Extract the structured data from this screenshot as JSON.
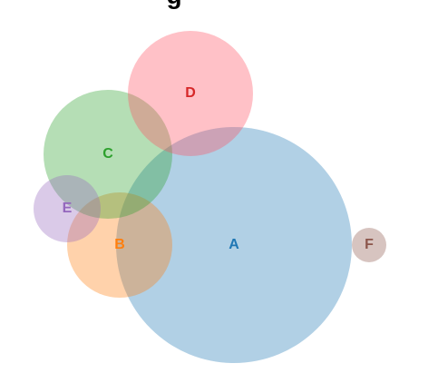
{
  "diagram": {
    "type": "venn",
    "title_fragment": "g",
    "sets": [
      {
        "id": "A",
        "label": "A",
        "fill": "#1f77b4",
        "text_color": "#1f77b4"
      },
      {
        "id": "B",
        "label": "B",
        "fill": "#ff7f0e",
        "text_color": "#ff7f0e"
      },
      {
        "id": "C",
        "label": "C",
        "fill": "#2ca02c",
        "text_color": "#2ca02c"
      },
      {
        "id": "D",
        "label": "D",
        "fill": "#ff4d5e",
        "text_color": "#d62728"
      },
      {
        "id": "E",
        "label": "E",
        "fill": "#9467bd",
        "text_color": "#9467bd"
      },
      {
        "id": "F",
        "label": "F",
        "fill": "#8c564b",
        "text_color": "#8c564b"
      }
    ],
    "fill_opacity": 0.35
  }
}
